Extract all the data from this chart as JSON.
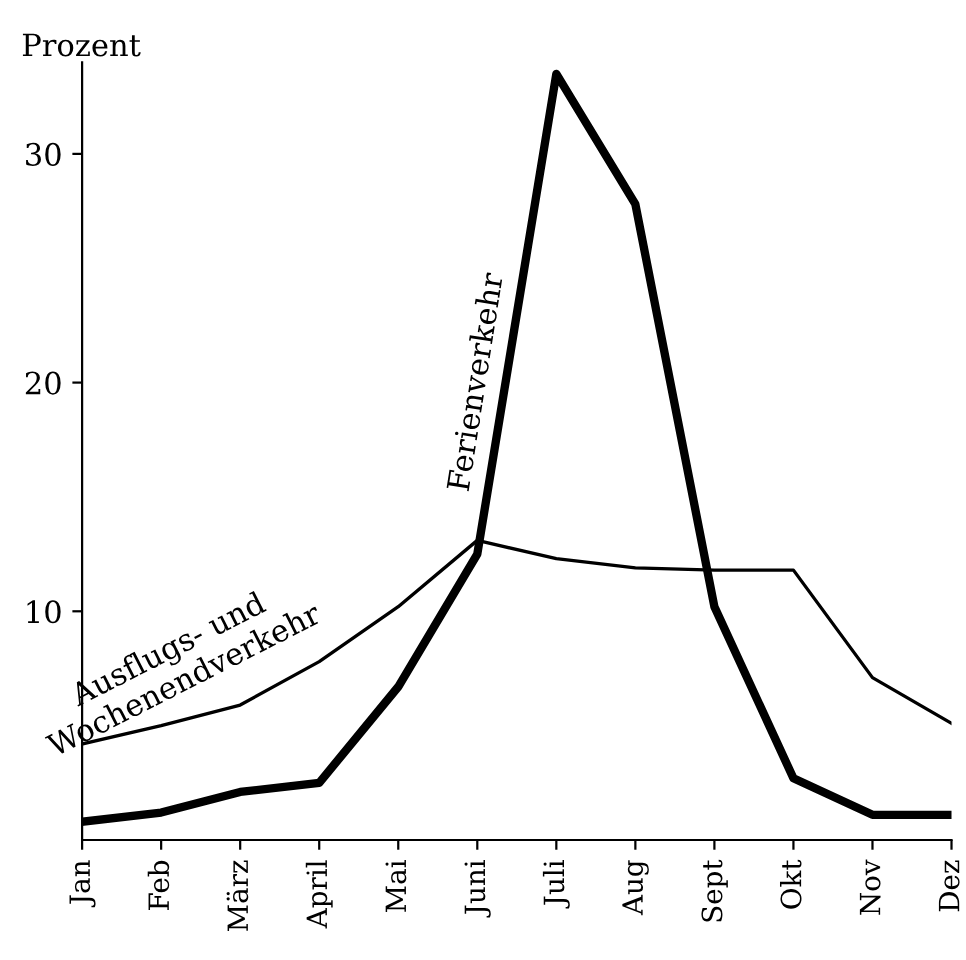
{
  "chart_data": {
    "type": "line",
    "ylabel": "Prozent",
    "categories": [
      "Jan",
      "Feb",
      "März",
      "April",
      "Mai",
      "Juni",
      "Juli",
      "Aug",
      "Sept",
      "Okt",
      "Nov",
      "Dez"
    ],
    "series": [
      {
        "name": "Ausflugs- und Wochenendverkehr",
        "color": "#000000",
        "values": [
          4.2,
          5.0,
          5.9,
          7.8,
          10.2,
          13.1,
          12.3,
          11.9,
          11.8,
          11.8,
          7.1,
          5.1
        ]
      },
      {
        "name": "Ferienverkehr",
        "color": "#000000",
        "values": [
          0.8,
          1.2,
          2.1,
          2.5,
          6.7,
          12.5,
          33.5,
          27.8,
          10.2,
          2.7,
          1.1,
          1.1
        ]
      }
    ],
    "ylim": [
      0,
      34
    ],
    "yticks": [
      10,
      20,
      30
    ],
    "grid": false,
    "legend": false,
    "marker": "none",
    "line_style": "solid"
  }
}
